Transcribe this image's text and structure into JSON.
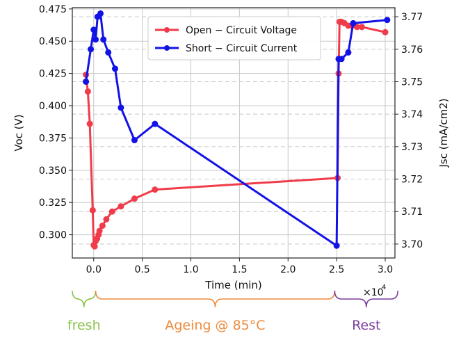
{
  "chart_data": {
    "type": "line",
    "xlabel": "Time (min)",
    "x_multiplier_label": "×10",
    "x_multiplier_exp": "4",
    "xlim": [
      -0.22,
      3.1
    ],
    "x_ticks": [
      0.0,
      0.5,
      1.0,
      1.5,
      2.0,
      2.5,
      3.0
    ],
    "x_tick_labels": [
      "0.0",
      "0.5",
      "1.0",
      "1.5",
      "2.0",
      "2.5",
      "3.0"
    ],
    "grid": true,
    "legend_position": "top-center",
    "left_axis": {
      "label": "Voc (V)",
      "lim": [
        0.282,
        0.476
      ],
      "ticks": [
        0.3,
        0.325,
        0.35,
        0.375,
        0.4,
        0.425,
        0.45,
        0.475
      ],
      "tick_labels": [
        "0.300",
        "0.325",
        "0.350",
        "0.375",
        "0.400",
        "0.425",
        "0.450",
        "0.475"
      ]
    },
    "right_axis": {
      "label": "Jsc (mA/cm2)",
      "lim": [
        3.6957,
        3.7728
      ],
      "ticks": [
        3.7,
        3.71,
        3.72,
        3.73,
        3.74,
        3.75,
        3.76,
        3.77
      ],
      "tick_labels": [
        "3.70",
        "3.71",
        "3.72",
        "3.73",
        "3.74",
        "3.75",
        "3.76",
        "3.77"
      ]
    },
    "series": [
      {
        "name": "Open − Circuit Voltage",
        "axis": "left",
        "color": "#f03c4a",
        "x": [
          -0.08,
          -0.06,
          -0.04,
          -0.01,
          0.0,
          0.01,
          0.02,
          0.035,
          0.05,
          0.06,
          0.09,
          0.13,
          0.19,
          0.28,
          0.42,
          0.63,
          2.51,
          2.52,
          2.53,
          2.55,
          2.58,
          2.62,
          2.66,
          2.71,
          2.76,
          3.0
        ],
        "values": [
          0.424,
          0.411,
          0.386,
          0.319,
          0.292,
          0.291,
          0.295,
          0.297,
          0.3,
          0.303,
          0.307,
          0.312,
          0.318,
          0.322,
          0.328,
          0.335,
          0.344,
          0.425,
          0.465,
          0.465,
          0.464,
          0.462,
          0.462,
          0.461,
          0.461,
          0.457
        ]
      },
      {
        "name": "Short − Circuit Current",
        "axis": "right",
        "color": "#1212e6",
        "x": [
          -0.08,
          -0.03,
          0.0,
          0.02,
          0.04,
          0.07,
          0.1,
          0.15,
          0.22,
          0.28,
          0.42,
          0.63,
          2.5,
          2.52,
          2.55,
          2.62,
          2.67,
          3.02
        ],
        "values": [
          3.75,
          3.76,
          3.766,
          3.763,
          3.77,
          3.771,
          3.763,
          3.759,
          3.754,
          3.742,
          3.732,
          3.737,
          3.6995,
          3.757,
          3.757,
          3.759,
          3.768,
          3.769
        ]
      }
    ],
    "annotations": [
      {
        "text": "fresh",
        "color": "#8bc34a",
        "x_start": -0.22,
        "x_end": 0.02
      },
      {
        "text": "Ageing @ 85°C",
        "color": "#ef8a3c",
        "x_start": 0.02,
        "x_end": 2.48
      },
      {
        "text": "Rest",
        "color": "#7b3f9e",
        "x_start": 2.48,
        "x_end": 3.13
      }
    ]
  }
}
